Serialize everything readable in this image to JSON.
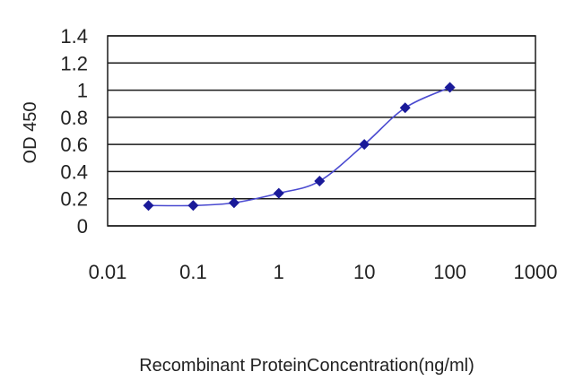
{
  "chart_data": {
    "type": "line",
    "ylabel": "OD 450",
    "xlabel": "Recombinant ProteinConcentration(ng/ml)",
    "x_scale": "log",
    "xlim": [
      0.01,
      1000
    ],
    "ylim": [
      0,
      1.4
    ],
    "x_ticks": [
      "0.01",
      "0.1",
      "1",
      "10",
      "100",
      "1000"
    ],
    "y_ticks": [
      "0",
      "0.2",
      "0.4",
      "0.6",
      "0.8",
      "1",
      "1.2",
      "1.4"
    ],
    "grid": "horizontal",
    "series": [
      {
        "x": [
          0.03,
          0.1,
          0.3,
          1,
          3,
          10,
          30,
          100
        ],
        "y": [
          0.15,
          0.15,
          0.17,
          0.24,
          0.33,
          0.6,
          0.87,
          1.02
        ],
        "color": "#1a1a99",
        "marker": "diamond"
      }
    ]
  },
  "colors": {
    "plot_background": "#ffffff",
    "gridline": "#1a1a1a",
    "frame": "#1a1a1a",
    "series_line": "#4a4ad0",
    "marker": "#1a1a99"
  }
}
